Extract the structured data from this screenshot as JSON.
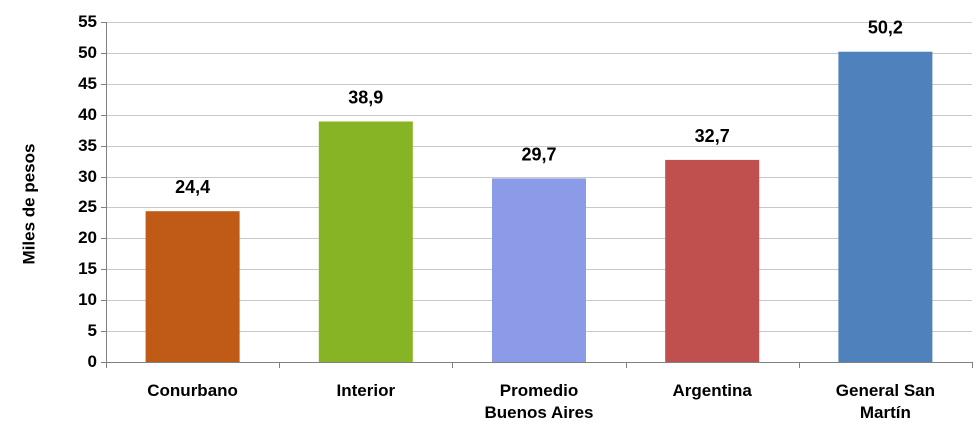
{
  "chart_data": {
    "type": "bar",
    "title": "",
    "xlabel": "",
    "ylabel": "Miles de pesos",
    "ylim": [
      0,
      55
    ],
    "yticks": [
      0,
      5,
      10,
      15,
      20,
      25,
      30,
      35,
      40,
      45,
      50,
      55
    ],
    "grid": true,
    "legend": "none",
    "categories": [
      [
        "Conurbano"
      ],
      [
        "Interior"
      ],
      [
        "Promedio",
        "Buenos Aires"
      ],
      [
        "Argentina"
      ],
      [
        "General San",
        "Martín"
      ]
    ],
    "values": [
      24.4,
      38.9,
      29.7,
      32.7,
      50.2
    ],
    "value_labels": [
      "24,4",
      "38,9",
      "29,7",
      "32,7",
      "50,2"
    ],
    "colors": [
      "#C05A17",
      "#86B424",
      "#8C9BE8",
      "#C0504D",
      "#4F81BD"
    ],
    "grid_color": "#C8C8C8",
    "axis_color": "#808080"
  }
}
